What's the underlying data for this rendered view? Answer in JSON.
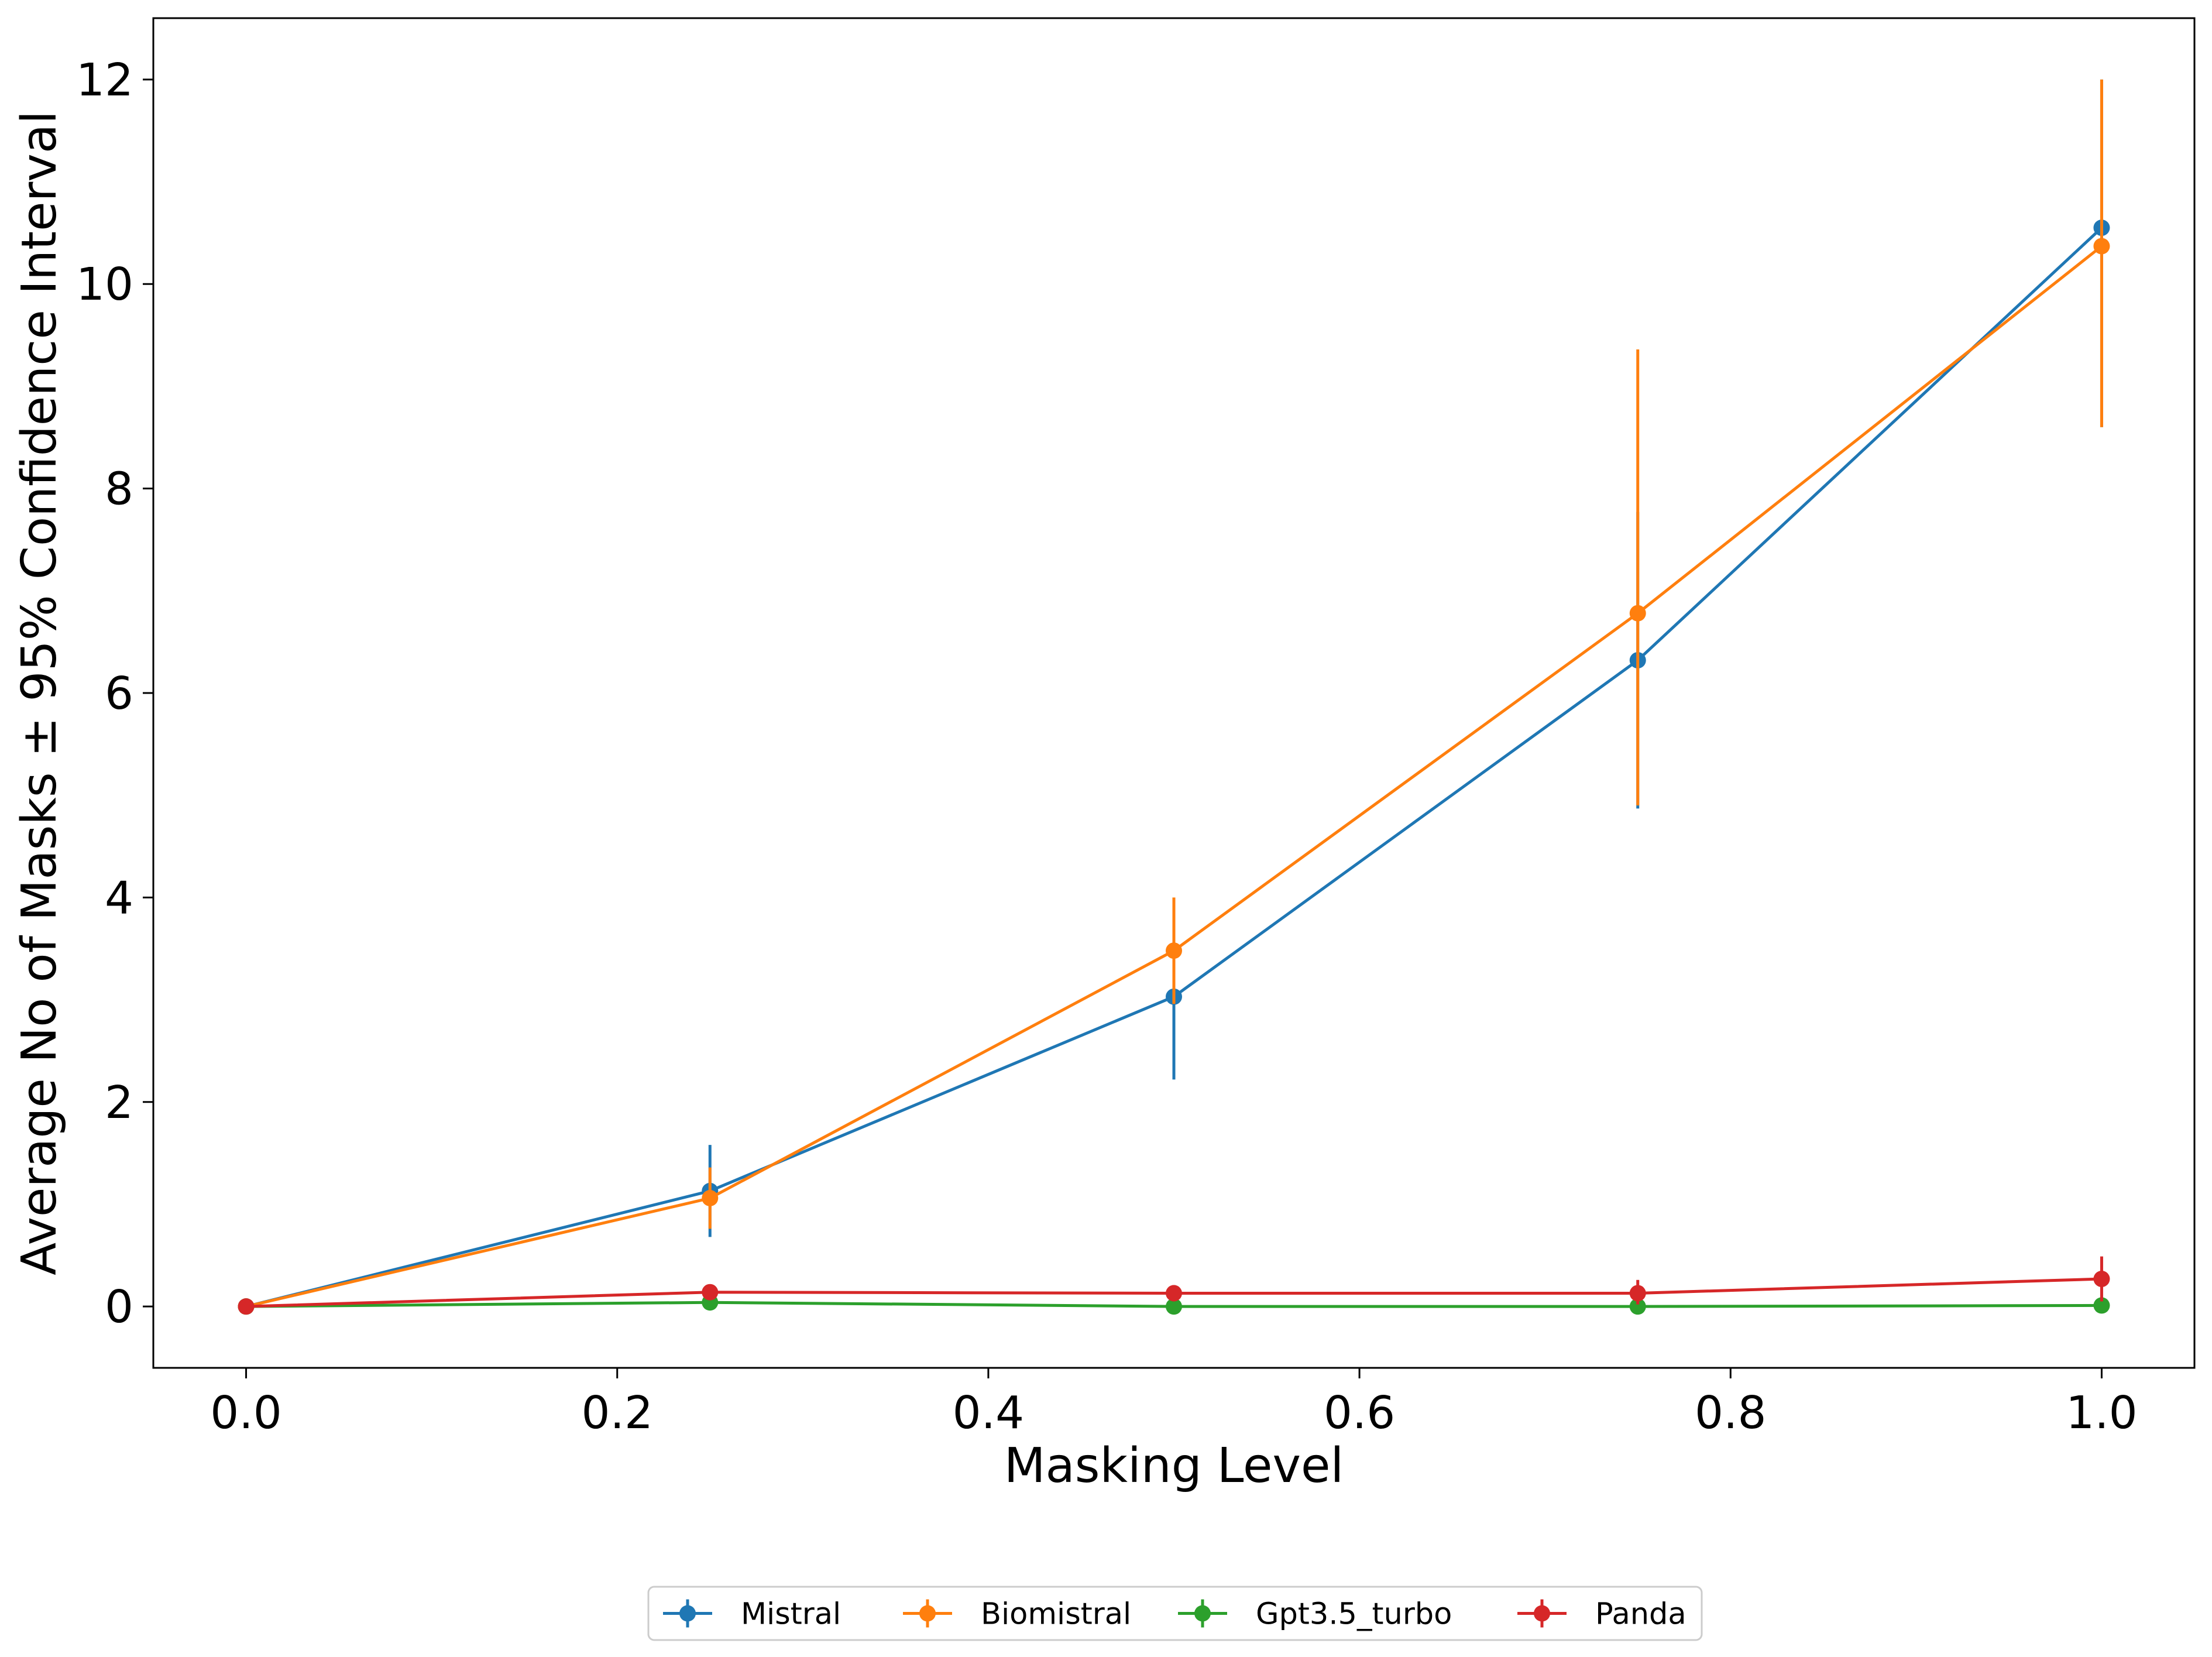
{
  "chart_data": {
    "type": "line",
    "xlabel": "Masking Level",
    "ylabel": "Average No of Masks ± 95% Confidence Interval",
    "xlim": [
      -0.05,
      1.05
    ],
    "ylim": [
      -0.6,
      12.6
    ],
    "x_ticks": [
      "0.0",
      "0.2",
      "0.4",
      "0.6",
      "0.8",
      "1.0"
    ],
    "y_ticks": [
      "0",
      "2",
      "4",
      "6",
      "8",
      "10",
      "12"
    ],
    "x": [
      0.0,
      0.25,
      0.5,
      0.75,
      1.0
    ],
    "error_bars": true,
    "legend_position": "bottom-center",
    "series": [
      {
        "name": "Mistral",
        "color": "#1f77b4",
        "values": [
          0.0,
          1.13,
          3.03,
          6.32,
          10.55
        ],
        "err_low": [
          0.0,
          0.68,
          2.22,
          4.87,
          8.6
        ],
        "err_high": [
          0.0,
          1.58,
          3.84,
          7.77,
          12.0
        ]
      },
      {
        "name": "Biomistral",
        "color": "#ff7f0e",
        "values": [
          0.0,
          1.06,
          3.48,
          6.78,
          10.37
        ],
        "err_low": [
          0.0,
          0.76,
          2.96,
          4.9,
          8.6
        ],
        "err_high": [
          0.0,
          1.36,
          4.0,
          9.36,
          12.0
        ]
      },
      {
        "name": "Gpt3.5_turbo",
        "color": "#2ca02c",
        "values": [
          0.0,
          0.04,
          0.0,
          0.0,
          0.01
        ],
        "err_low": [
          0.0,
          0.0,
          0.0,
          0.0,
          0.0
        ],
        "err_high": [
          0.0,
          0.08,
          0.0,
          0.0,
          0.03
        ]
      },
      {
        "name": "Panda",
        "color": "#d62728",
        "values": [
          0.0,
          0.14,
          0.13,
          0.13,
          0.27
        ],
        "err_low": [
          0.0,
          0.08,
          0.05,
          0.02,
          0.05
        ],
        "err_high": [
          0.0,
          0.2,
          0.21,
          0.26,
          0.49
        ]
      }
    ]
  }
}
